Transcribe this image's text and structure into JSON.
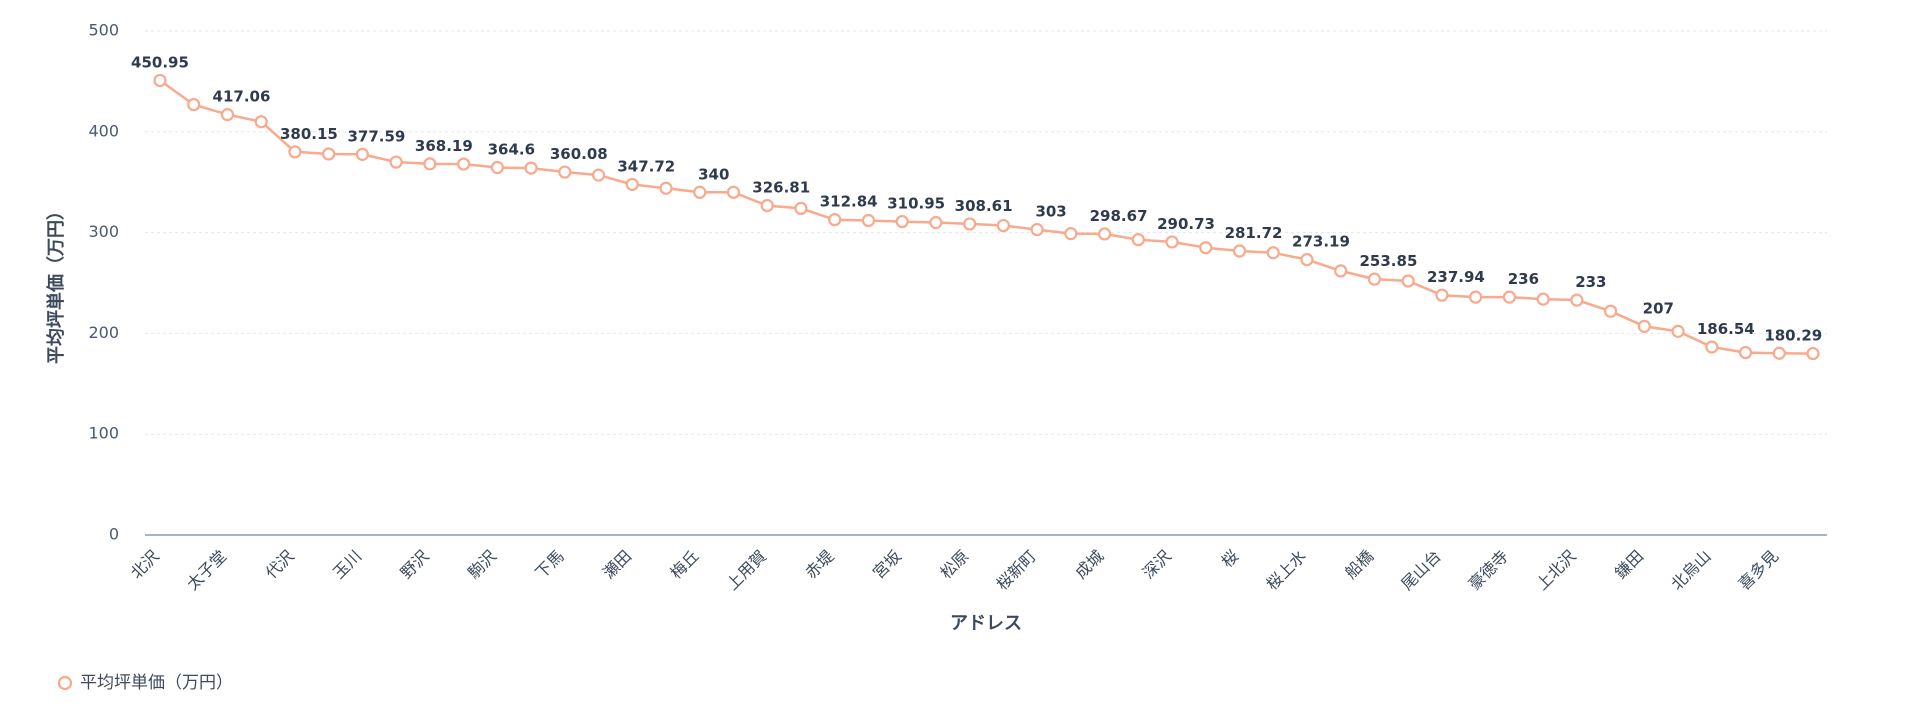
{
  "chart_data": {
    "type": "line",
    "xlabel": "アドレス",
    "ylabel": "平均坪単価（万円）",
    "ylim": [
      0,
      500
    ],
    "yticks": [
      0,
      100,
      200,
      300,
      400,
      500
    ],
    "grid": true,
    "legend_position": "bottom-left",
    "series": [
      {
        "name": "平均坪単価（万円）",
        "color": "#f9a98c",
        "values": [
          450.95,
          427,
          417.06,
          410,
          380.15,
          378,
          377.59,
          370,
          368.19,
          368,
          364.6,
          364,
          360.08,
          357,
          347.72,
          344,
          340,
          340,
          326.81,
          324,
          312.84,
          312,
          310.95,
          310,
          308.61,
          307,
          303,
          299,
          298.67,
          293,
          290.73,
          285,
          281.72,
          280,
          273.19,
          262,
          253.85,
          252,
          237.94,
          236,
          236,
          234,
          233,
          222,
          207,
          202,
          186.54,
          181,
          180.29,
          180
        ]
      }
    ],
    "x": [
      "北沢",
      "",
      "太子堂",
      "",
      "代沢",
      "",
      "玉川",
      "",
      "野沢",
      "",
      "駒沢",
      "",
      "下馬",
      "",
      "瀬田",
      "",
      "梅丘",
      "",
      "上用賀",
      "",
      "赤堤",
      "",
      "宮坂",
      "",
      "松原",
      "",
      "桜新町",
      "",
      "成城",
      "",
      "深沢",
      "",
      "桜",
      "",
      "桜上水",
      "",
      "船橋",
      "",
      "尾山台",
      "",
      "豪徳寺",
      "",
      "上北沢",
      "",
      "鎌田",
      "",
      "北烏山",
      "",
      "喜多見",
      ""
    ],
    "data_labels": [
      "450.95",
      "",
      "417.06",
      "",
      "380.15",
      "",
      "377.59",
      "",
      "368.19",
      "",
      "364.6",
      "",
      "360.08",
      "",
      "347.72",
      "",
      "340",
      "",
      "326.81",
      "",
      "312.84",
      "",
      "310.95",
      "",
      "308.61",
      "",
      "303",
      "",
      "298.67",
      "",
      "290.73",
      "",
      "281.72",
      "",
      "273.19",
      "",
      "253.85",
      "",
      "237.94",
      "",
      "236",
      "",
      "233",
      "",
      "207",
      "",
      "186.54",
      "",
      "180.29",
      ""
    ]
  }
}
